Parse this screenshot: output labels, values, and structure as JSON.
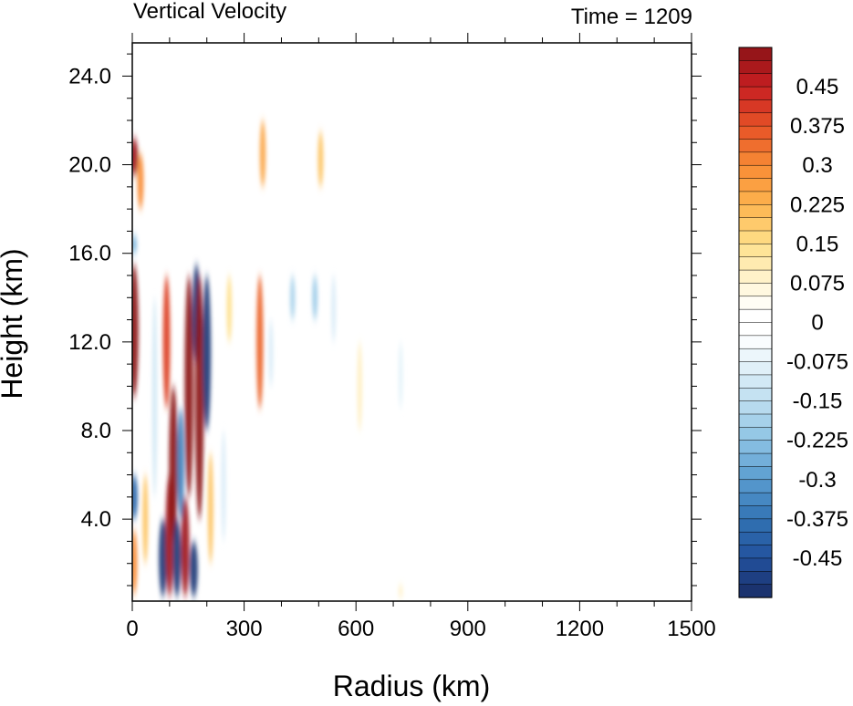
{
  "chart_data": {
    "type": "heatmap",
    "title_left": "Vertical Velocity",
    "title_right": "Time = 1209",
    "xlabel": "Radius (km)",
    "ylabel": "Height (km)",
    "xlim": [
      0,
      1500
    ],
    "ylim": [
      0.3,
      25.5
    ],
    "x_major_ticks": [
      0,
      300,
      600,
      900,
      1200,
      1500
    ],
    "x_tick_labels": [
      "0",
      "300",
      "600",
      "900",
      "1200",
      "1500"
    ],
    "y_major_ticks": [
      4,
      8,
      12,
      16,
      20,
      24
    ],
    "y_tick_labels": [
      "4.0",
      "8.0",
      "12.0",
      "16.0",
      "20.0",
      "24.0"
    ],
    "colorbar": {
      "min": -0.525,
      "max": 0.525,
      "step": 0.025,
      "tick_values": [
        0.45,
        0.375,
        0.3,
        0.225,
        0.15,
        0.075,
        0,
        -0.075,
        -0.15,
        -0.225,
        -0.3,
        -0.375,
        -0.45
      ],
      "tick_labels": [
        "0.45",
        "0.375",
        "0.3",
        "0.225",
        "0.15",
        "0.075",
        "0",
        "-0.075",
        "-0.15",
        "-0.225",
        "-0.3",
        "-0.375",
        "-0.45"
      ]
    },
    "features": [
      {
        "r": 5,
        "z0": 9.5,
        "z1": 15.5,
        "w": 0.55
      },
      {
        "r": 5,
        "z0": 19.5,
        "z1": 21.2,
        "w": 0.5
      },
      {
        "r": 5,
        "z0": 16.0,
        "z1": 16.8,
        "w": -0.25
      },
      {
        "r": 5,
        "z0": 4.0,
        "z1": 6.0,
        "w": -0.4
      },
      {
        "r": 5,
        "z0": 0.6,
        "z1": 3.5,
        "w": 0.3
      },
      {
        "r": 22,
        "z0": 18.0,
        "z1": 20.5,
        "w": 0.3
      },
      {
        "r": 35,
        "z0": 2.0,
        "z1": 6.0,
        "w": 0.2
      },
      {
        "r": 60,
        "z0": 5.0,
        "z1": 14.0,
        "w": -0.12
      },
      {
        "r": 82,
        "z0": 0.5,
        "z1": 4.0,
        "w": -0.5
      },
      {
        "r": 92,
        "z0": 9.0,
        "z1": 15.0,
        "w": 0.4
      },
      {
        "r": 100,
        "z0": 0.5,
        "z1": 6.0,
        "w": 0.5
      },
      {
        "r": 110,
        "z0": 3.0,
        "z1": 10.0,
        "w": 0.55
      },
      {
        "r": 120,
        "z0": 0.5,
        "z1": 4.0,
        "w": -0.5
      },
      {
        "r": 130,
        "z0": 4.0,
        "z1": 9.0,
        "w": -0.35
      },
      {
        "r": 142,
        "z0": 0.5,
        "z1": 5.0,
        "w": 0.5
      },
      {
        "r": 152,
        "z0": 5.0,
        "z1": 15.0,
        "w": 0.55
      },
      {
        "r": 165,
        "z0": 0.5,
        "z1": 3.0,
        "w": -0.5
      },
      {
        "r": 172,
        "z0": 11.0,
        "z1": 15.5,
        "w": -0.5
      },
      {
        "r": 180,
        "z0": 4.0,
        "z1": 15.0,
        "w": 0.55
      },
      {
        "r": 200,
        "z0": 8.0,
        "z1": 15.0,
        "w": -0.5
      },
      {
        "r": 210,
        "z0": 2.0,
        "z1": 7.0,
        "w": 0.2
      },
      {
        "r": 245,
        "z0": 3.0,
        "z1": 8.0,
        "w": -0.1
      },
      {
        "r": 260,
        "z0": 12.0,
        "z1": 15.0,
        "w": 0.15
      },
      {
        "r": 342,
        "z0": 9.0,
        "z1": 15.0,
        "w": 0.35
      },
      {
        "r": 350,
        "z0": 19.0,
        "z1": 22.0,
        "w": 0.25
      },
      {
        "r": 372,
        "z0": 10.0,
        "z1": 13.0,
        "w": -0.1
      },
      {
        "r": 430,
        "z0": 13.0,
        "z1": 15.0,
        "w": -0.18
      },
      {
        "r": 490,
        "z0": 13.0,
        "z1": 15.0,
        "w": -0.2
      },
      {
        "r": 505,
        "z0": 19.0,
        "z1": 21.5,
        "w": 0.2
      },
      {
        "r": 540,
        "z0": 12.0,
        "z1": 15.0,
        "w": -0.1
      },
      {
        "r": 610,
        "z0": 8.0,
        "z1": 12.0,
        "w": 0.1
      },
      {
        "r": 720,
        "z0": 9.0,
        "z1": 12.0,
        "w": -0.08
      },
      {
        "r": 720,
        "z0": 0.5,
        "z1": 1.0,
        "w": 0.1
      }
    ]
  }
}
